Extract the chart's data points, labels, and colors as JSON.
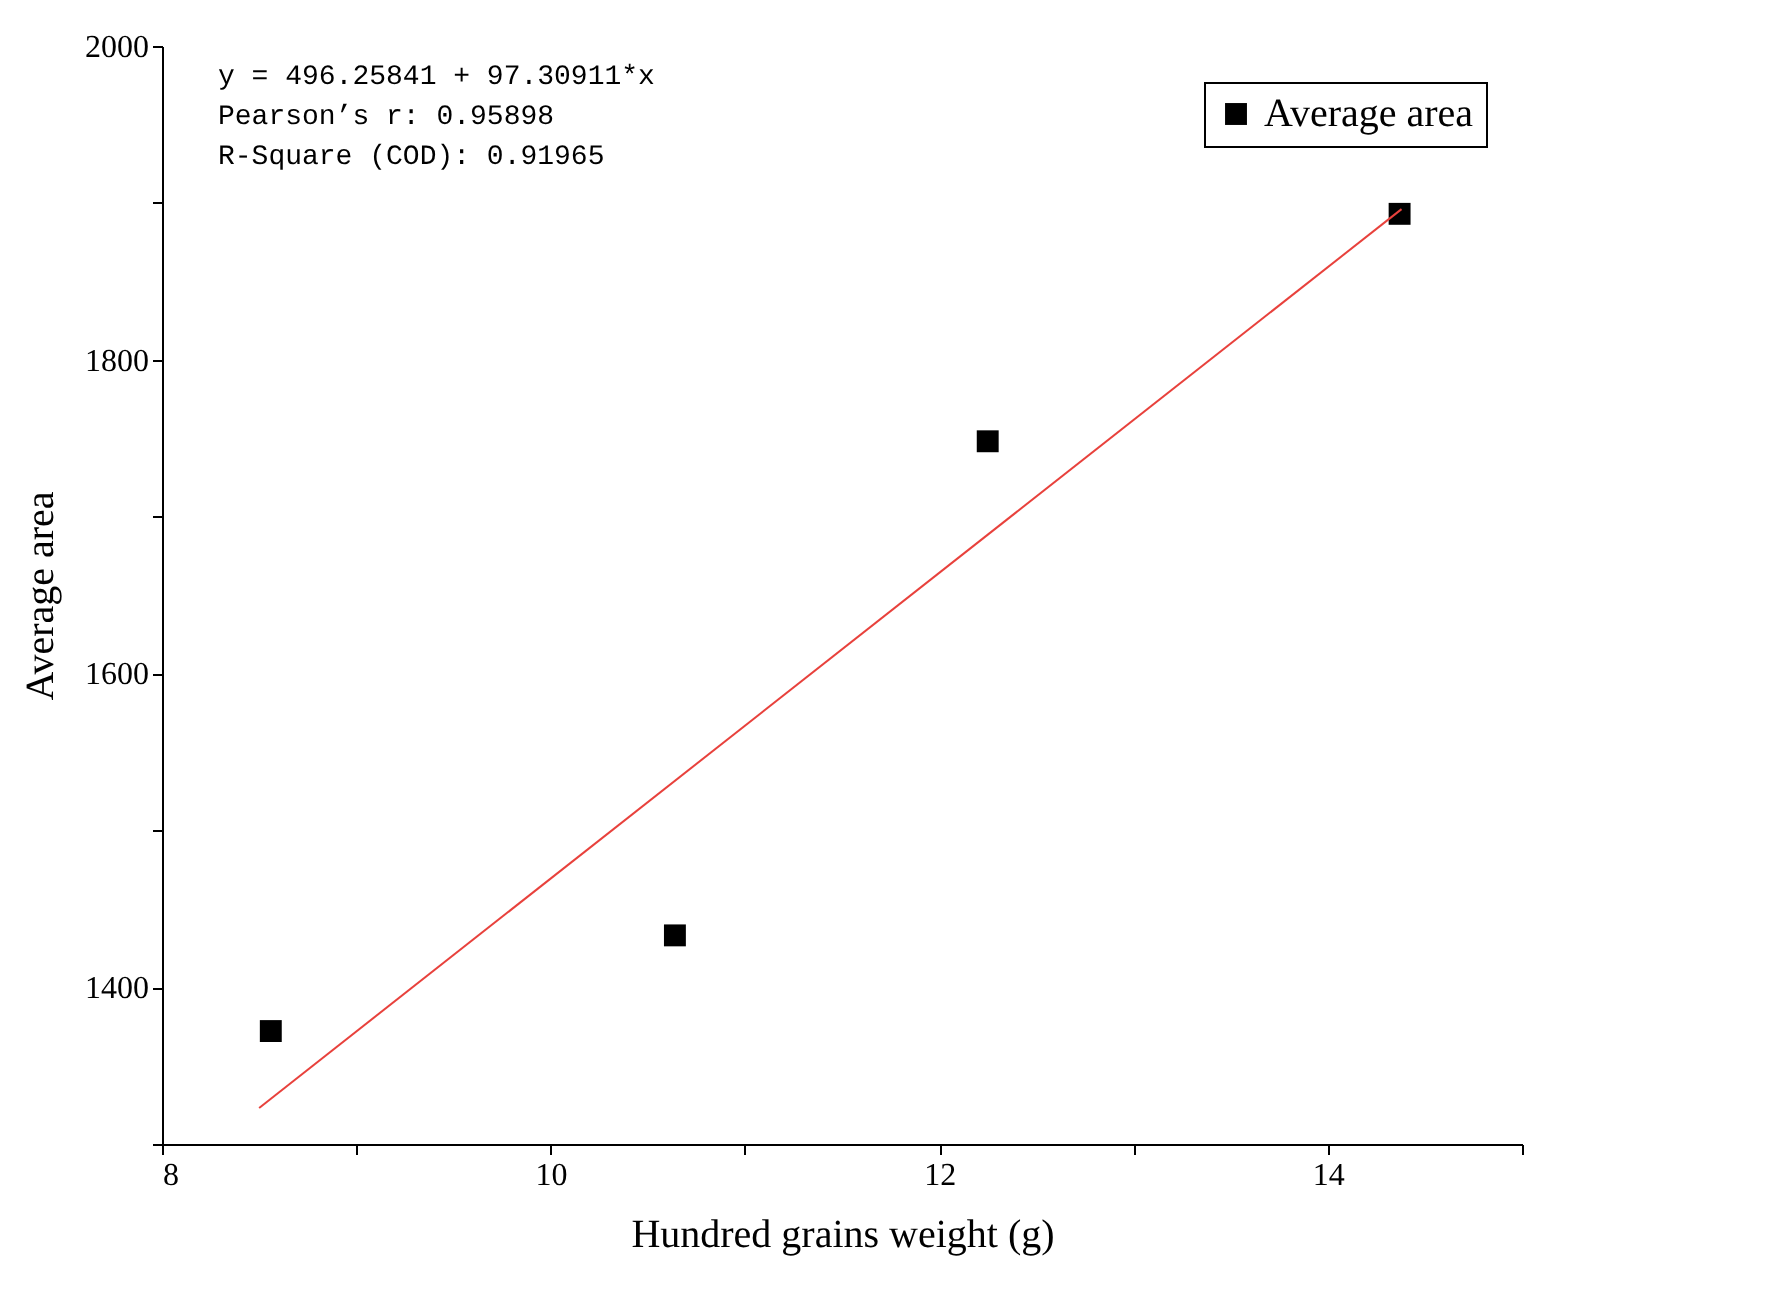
{
  "chart_data": {
    "type": "scatter",
    "xlabel": "Hundred grains weight (g)",
    "ylabel": "Average area",
    "xlim": [
      8,
      15
    ],
    "xticks": [
      8,
      {
        "value": 9,
        "label": null
      },
      10,
      {
        "value": 11,
        "label": null
      },
      12,
      {
        "value": 13,
        "label": null
      },
      14,
      {
        "value": 15,
        "label": null
      }
    ],
    "ylim": [
      1300,
      2000
    ],
    "yticks": [
      {
        "value": 1300,
        "label": null
      },
      1400,
      {
        "value": 1500,
        "label": null
      },
      1600,
      {
        "value": 1700,
        "label": null
      },
      1800,
      {
        "value": 1900,
        "label": null
      },
      2000
    ],
    "x": [
      8.56,
      10.64,
      12.25,
      14.37
    ],
    "series": [
      {
        "name": "Average area",
        "color": "#000000",
        "values": [
          1372,
          1433,
          1748,
          1893
        ]
      },
      {
        "type": "line",
        "color": "#e8413c",
        "x": [
          8.5,
          14.38
        ],
        "values": [
          1323,
          1896
        ],
        "line_style": "solid",
        "marker": "none"
      }
    ],
    "marker": "square",
    "grid": false,
    "legend": "top right",
    "annotations": [
      "y = 496.25841 + 97.30911*x",
      "Pearson’s r: 0.95898",
      "R-Square (COD): 0.91965"
    ]
  }
}
